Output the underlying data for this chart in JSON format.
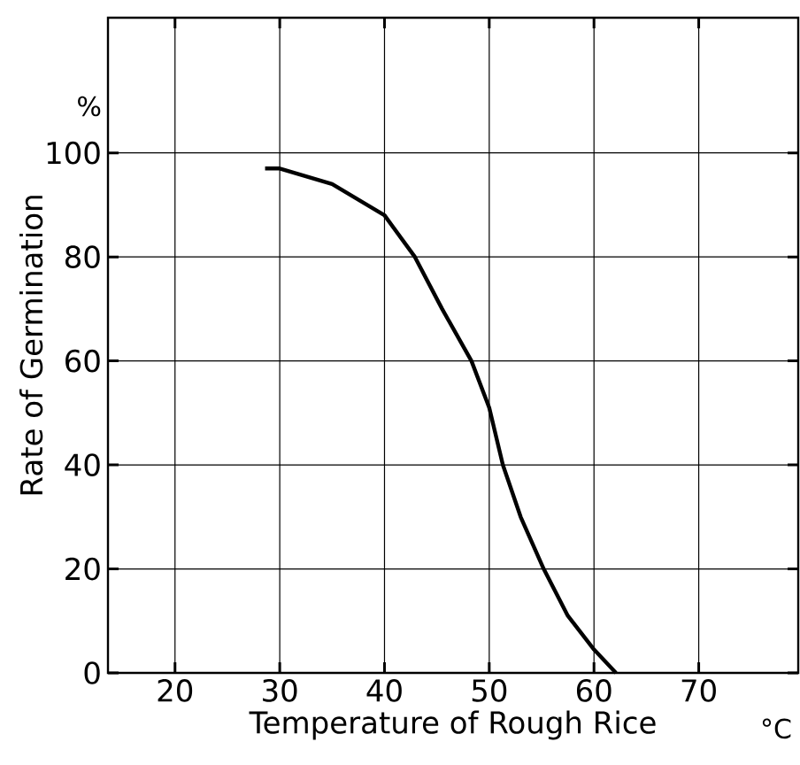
{
  "chart_data": {
    "type": "line",
    "xlabel": "Temperature of Rough Rice",
    "ylabel": "Rate of Germination",
    "annotations": [
      "%",
      "°C"
    ],
    "x": [
      28.6,
      30,
      35,
      40,
      42.9,
      45.5,
      48.3,
      50,
      51.3,
      53,
      55.2,
      57.5,
      60,
      62.1
    ],
    "values": [
      97,
      97,
      94,
      88,
      80,
      70,
      60,
      51,
      40,
      30,
      20,
      11,
      4.5,
      0
    ],
    "color": "#000000",
    "xlim": [
      13.6,
      79.5
    ],
    "ylim": [
      0,
      126
    ],
    "xticks": [
      20,
      30,
      40,
      50,
      60,
      70
    ],
    "yticks": [
      0,
      20,
      40,
      60,
      80,
      100
    ],
    "grid": true,
    "marker": "none",
    "line_style": "solid"
  }
}
